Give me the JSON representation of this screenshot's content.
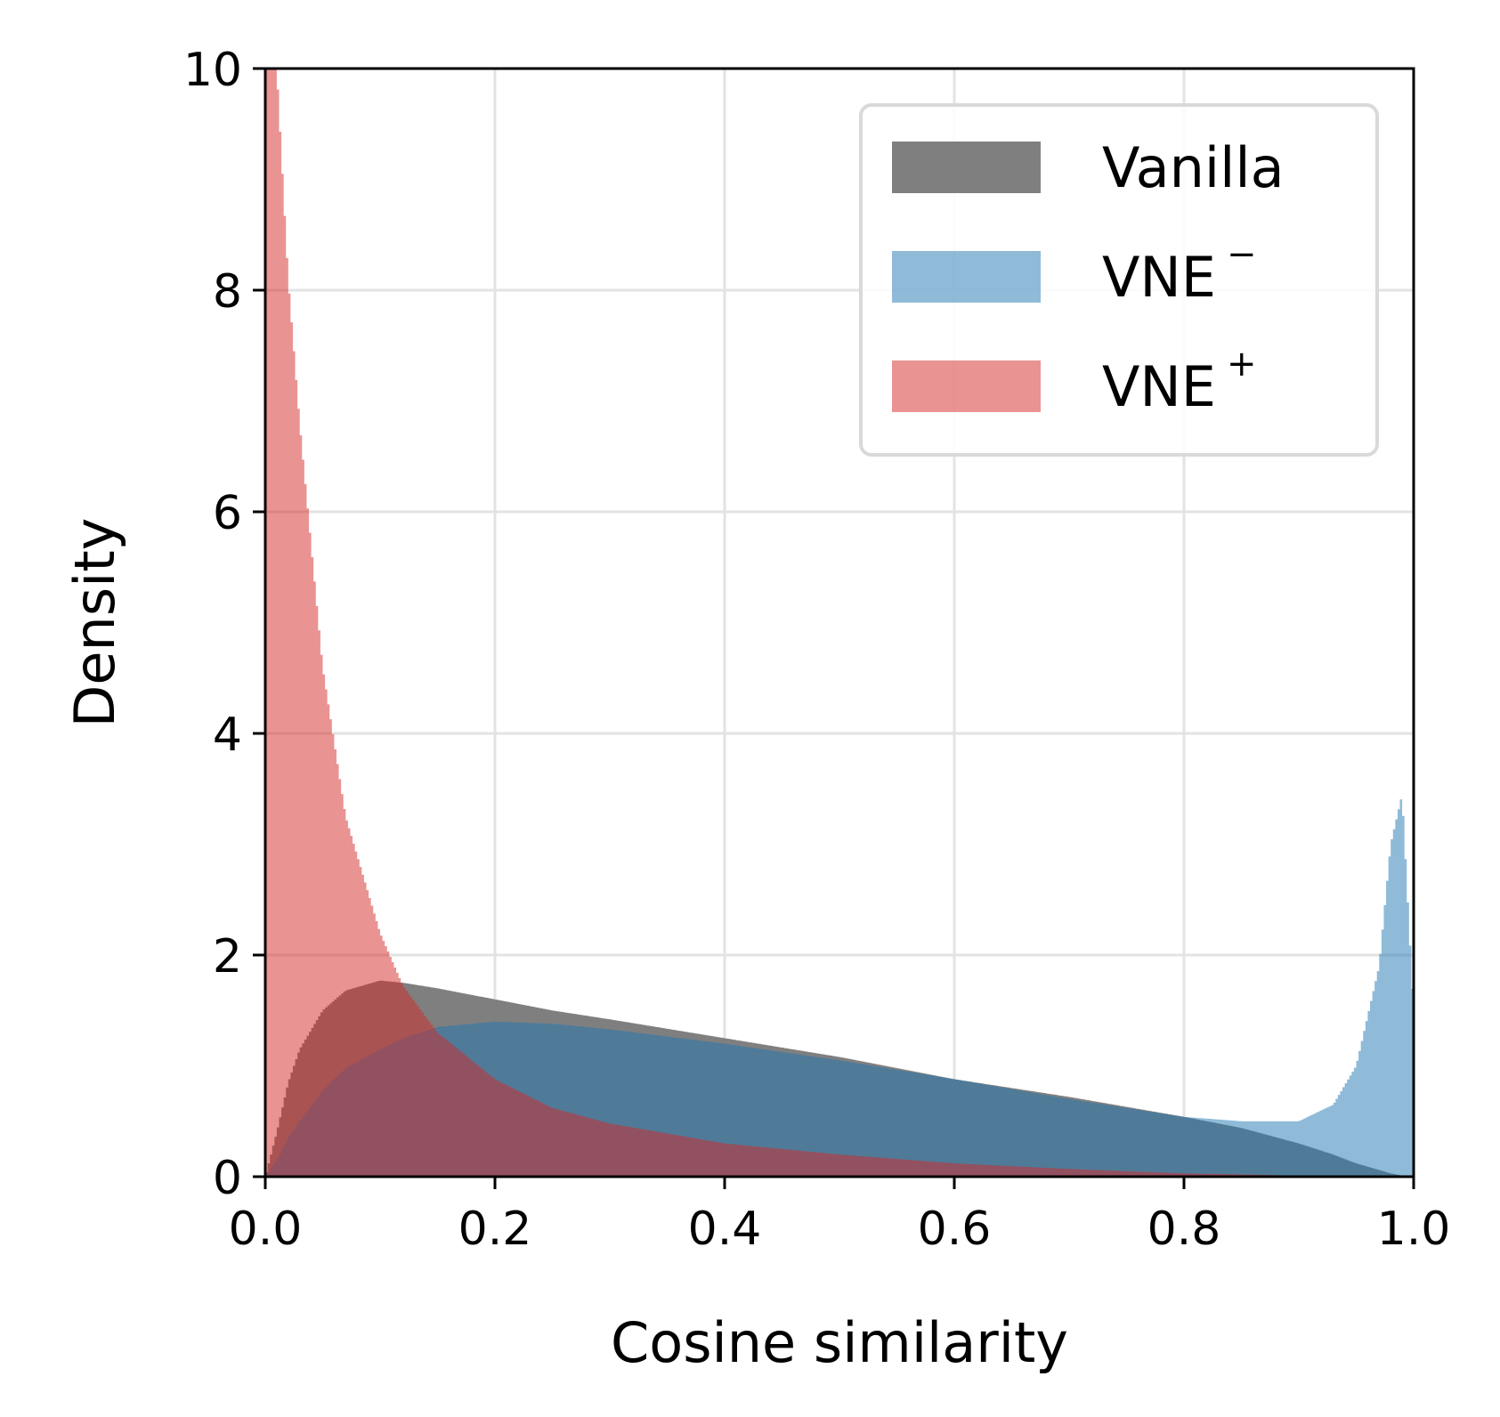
{
  "chart_data": {
    "type": "bar",
    "subtype": "overlaid-histogram",
    "xlabel": "Cosine similarity",
    "ylabel": "Density",
    "xlim": [
      0.0,
      1.0
    ],
    "ylim": [
      0,
      10
    ],
    "x_ticks": [
      "0.0",
      "0.2",
      "0.4",
      "0.6",
      "0.8",
      "1.0"
    ],
    "y_ticks": [
      "0",
      "2",
      "4",
      "6",
      "8",
      "10"
    ],
    "grid": true,
    "legend_position": "top-right",
    "x": [
      0.0,
      0.01,
      0.02,
      0.03,
      0.05,
      0.07,
      0.1,
      0.12,
      0.15,
      0.2,
      0.25,
      0.3,
      0.4,
      0.5,
      0.6,
      0.7,
      0.8,
      0.85,
      0.9,
      0.93,
      0.95,
      0.97,
      0.98,
      0.99,
      1.0
    ],
    "series": [
      {
        "name": "Vanilla",
        "color": "#7f7f7f",
        "opacity": 1.0,
        "values": [
          0.0,
          0.4,
          0.85,
          1.15,
          1.5,
          1.68,
          1.77,
          1.75,
          1.7,
          1.6,
          1.5,
          1.42,
          1.25,
          1.08,
          0.88,
          0.72,
          0.54,
          0.44,
          0.3,
          0.2,
          0.12,
          0.06,
          0.03,
          0.01,
          0.0
        ]
      },
      {
        "name": "VNE",
        "name_superscript": "−",
        "color": "#1f77b4",
        "opacity": 0.5,
        "values": [
          0.0,
          0.15,
          0.35,
          0.5,
          0.78,
          0.98,
          1.15,
          1.25,
          1.35,
          1.4,
          1.38,
          1.33,
          1.2,
          1.05,
          0.88,
          0.7,
          0.54,
          0.5,
          0.5,
          0.65,
          1.0,
          1.9,
          3.0,
          3.45,
          1.5
        ]
      },
      {
        "name": "VNE",
        "name_superscript": "+",
        "color": "#d62728",
        "opacity": 0.5,
        "values": [
          10.0,
          10.0,
          8.1,
          6.8,
          4.6,
          3.25,
          2.2,
          1.72,
          1.3,
          0.88,
          0.62,
          0.48,
          0.3,
          0.2,
          0.12,
          0.07,
          0.03,
          0.02,
          0.01,
          0.005,
          0.0,
          0.0,
          0.0,
          0.0,
          0.0
        ]
      }
    ]
  }
}
